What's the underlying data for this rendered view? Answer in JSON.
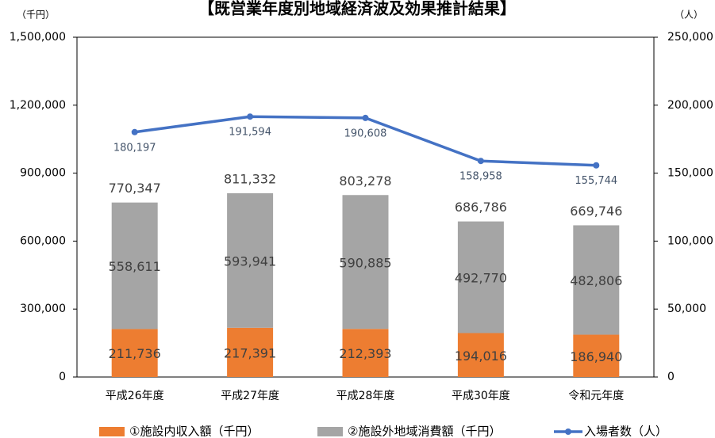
{
  "chart_data": {
    "type": "stacked-bar-line",
    "title": "【既営業年度別地域経済波及効果推計結果】",
    "y_unit": "（千円）",
    "y2_unit": "（人）",
    "categories": [
      "平成26年度",
      "平成27年度",
      "平成28年度",
      "平成30年度",
      "令和元年度"
    ],
    "series": [
      {
        "name": "①施設内収入額（千円）",
        "color": "#ed7d31",
        "type": "bar",
        "values": [
          211736,
          217391,
          212393,
          194016,
          186940
        ],
        "value_labels": [
          "211,736",
          "217,391",
          "212,393",
          "194,016",
          "186,940"
        ]
      },
      {
        "name": "②施設外地域消費額（千円）",
        "color": "#a5a5a5",
        "type": "bar",
        "values": [
          558611,
          593941,
          590885,
          492770,
          482806
        ],
        "value_labels": [
          "558,611",
          "593,941",
          "590,885",
          "492,770",
          "482,806"
        ]
      },
      {
        "name": "入場者数（人）",
        "color": "#4472c4",
        "type": "line",
        "axis": "y2",
        "values": [
          180197,
          191594,
          190608,
          158958,
          155744
        ],
        "value_labels": [
          "180,197",
          "191,594",
          "190,608",
          "158,958",
          "155,744"
        ]
      }
    ],
    "totals": {
      "values": [
        770347,
        811332,
        803278,
        686786,
        669746
      ],
      "value_labels": [
        "770,347",
        "811,332",
        "803,278",
        "686,786",
        "669,746"
      ]
    },
    "ylim": [
      0,
      1500000
    ],
    "yticks": [
      0,
      {
        "value": 300000,
        "label": "300,000"
      },
      {
        "value": 600000,
        "label": "600,000"
      },
      {
        "value": 900000,
        "label": "900,000"
      },
      {
        "value": 1200000,
        "label": "1,200,000"
      },
      {
        "value": 1500000,
        "label": "1,500,000"
      }
    ],
    "y2lim": [
      0,
      250000
    ],
    "y2ticks": [
      0,
      {
        "value": 50000,
        "label": "50,000"
      },
      {
        "value": 100000,
        "label": "100,000"
      },
      {
        "value": 150000,
        "label": "150,000"
      },
      {
        "value": 200000,
        "label": "200,000"
      },
      {
        "value": 250000,
        "label": "250,000"
      }
    ],
    "grid": false
  }
}
